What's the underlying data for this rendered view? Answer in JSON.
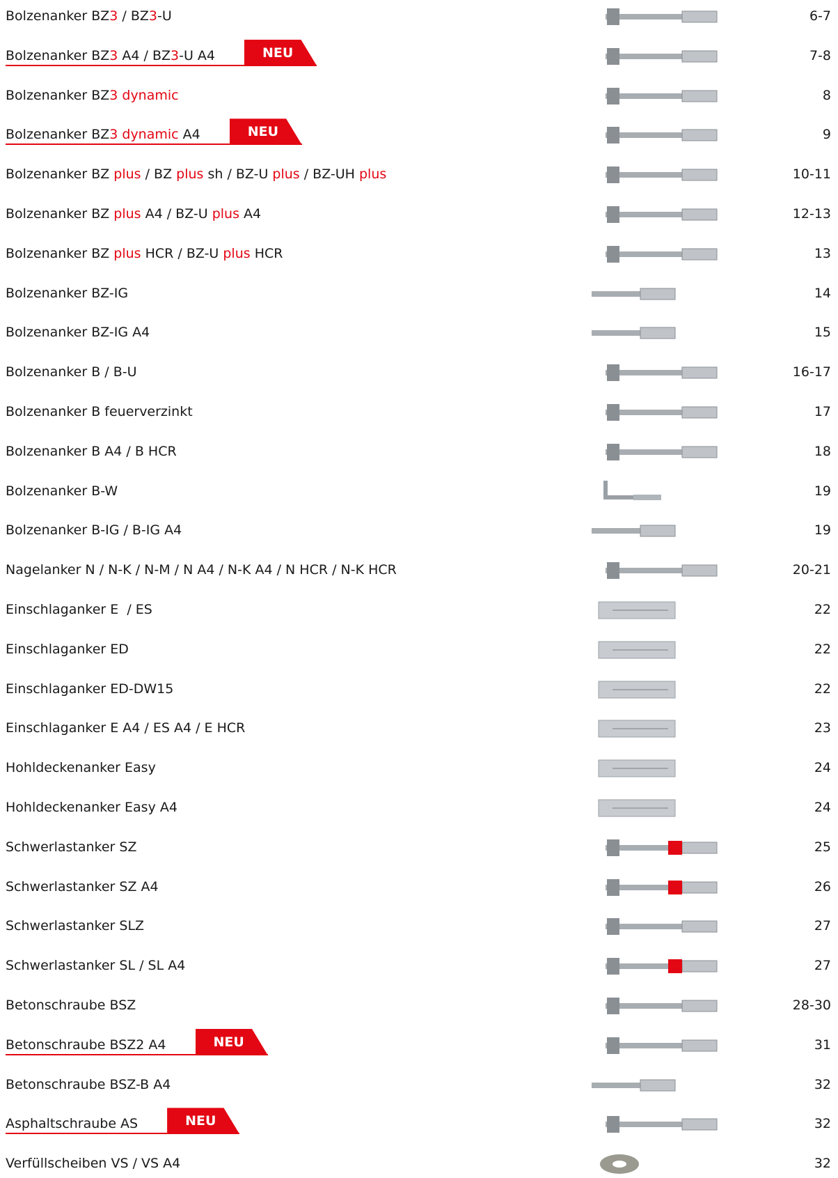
{
  "rows": [
    {
      "label": [
        "Bolzenanker BZ",
        {
          "text": "3",
          "color": "#e30613"
        },
        " / BZ",
        {
          "text": "3",
          "color": "#e30613"
        },
        "-U"
      ],
      "page": "6-7"
    },
    {
      "label": [
        "Bolzenanker BZ",
        {
          "text": "3",
          "color": "#e30613"
        },
        " A4 / BZ",
        {
          "text": "3",
          "color": "#e30613"
        },
        "-U A4"
      ],
      "badge": "NEU",
      "page": "7-8"
    },
    {
      "label": [
        "Bolzenanker BZ",
        {
          "text": "3 dynamic",
          "color": "#e30613"
        }
      ],
      "page": "8"
    },
    {
      "label": [
        "Bolzenanker BZ",
        {
          "text": "3 dynamic",
          "color": "#e30613"
        },
        " A4"
      ],
      "badge": "NEU",
      "page": "9"
    },
    {
      "label": [
        "Bolzenanker BZ ",
        {
          "text": "plus",
          "color": "#e30613"
        },
        " / BZ ",
        {
          "text": "plus",
          "color": "#e30613"
        },
        " sh / BZ-U ",
        {
          "text": "plus",
          "color": "#e30613"
        },
        " / BZ-UH ",
        {
          "text": "plus",
          "color": "#e30613"
        }
      ],
      "page": "10-11"
    },
    {
      "label": [
        "Bolzenanker BZ ",
        {
          "text": "plus",
          "color": "#e30613"
        },
        " A4 / BZ-U ",
        {
          "text": "plus",
          "color": "#e30613"
        },
        " A4"
      ],
      "page": "12-13"
    },
    {
      "label": [
        "Bolzenanker BZ ",
        {
          "text": "plus",
          "color": "#e30613"
        },
        " HCR / BZ-U ",
        {
          "text": "plus",
          "color": "#e30613"
        },
        " HCR"
      ],
      "page": "13"
    },
    {
      "label": [
        "Bolzenanker BZ-IG"
      ],
      "page": "14"
    },
    {
      "label": [
        "Bolzenanker BZ-IG A4"
      ],
      "page": "15"
    },
    {
      "label": [
        "Bolzenanker B / B-U"
      ],
      "page": "16-17"
    },
    {
      "label": [
        "Bolzenanker B feuerverzinkt"
      ],
      "page": "17"
    },
    {
      "label": [
        "Bolzenanker B A4 / B HCR"
      ],
      "page": "18"
    },
    {
      "label": [
        "Bolzenanker B-W"
      ],
      "page": "19"
    },
    {
      "label": [
        "Bolzenanker B-IG / B-IG A4"
      ],
      "page": "19"
    },
    {
      "label": [
        "Nagelanker N / N-K / N-M / N A4 / N-K A4 / N HCR / N-K HCR"
      ],
      "page": "20-21"
    },
    {
      "label": [
        "Einschlaganker E  / ES"
      ],
      "page": "22"
    },
    {
      "label": [
        "Einschlaganker ED"
      ],
      "page": "22"
    },
    {
      "label": [
        "Einschlaganker ED-DW15"
      ],
      "page": "22"
    },
    {
      "label": [
        "Einschlaganker E A4 / ES A4 / E HCR"
      ],
      "page": "23"
    },
    {
      "label": [
        "Hohldeckenanker Easy"
      ],
      "page": "24"
    },
    {
      "label": [
        "Hohldeckenanker Easy A4"
      ],
      "page": "24"
    },
    {
      "label": [
        "Schwerlastanker SZ"
      ],
      "page": "25"
    },
    {
      "label": [
        "Schwerlastanker SZ A4"
      ],
      "page": "26"
    },
    {
      "label": [
        "Schwerlastanker SLZ"
      ],
      "page": "27"
    },
    {
      "label": [
        "Schwerlastanker SL / SL A4"
      ],
      "page": "27"
    },
    {
      "label": [
        "Betonschraube BSZ"
      ],
      "page": "28-30"
    },
    {
      "label": [
        "Betonschraube BSZ2 A4"
      ],
      "badge": "NEU",
      "page": "31"
    },
    {
      "label": [
        "Betonschraube BSZ-B A4"
      ],
      "page": "32"
    },
    {
      "label": [
        "Asphaltschraube AS"
      ],
      "badge": "NEU",
      "page": "32"
    },
    {
      "label": [
        "Verfüllscheiben VS / VS A4"
      ],
      "page": "32"
    }
  ]
}
